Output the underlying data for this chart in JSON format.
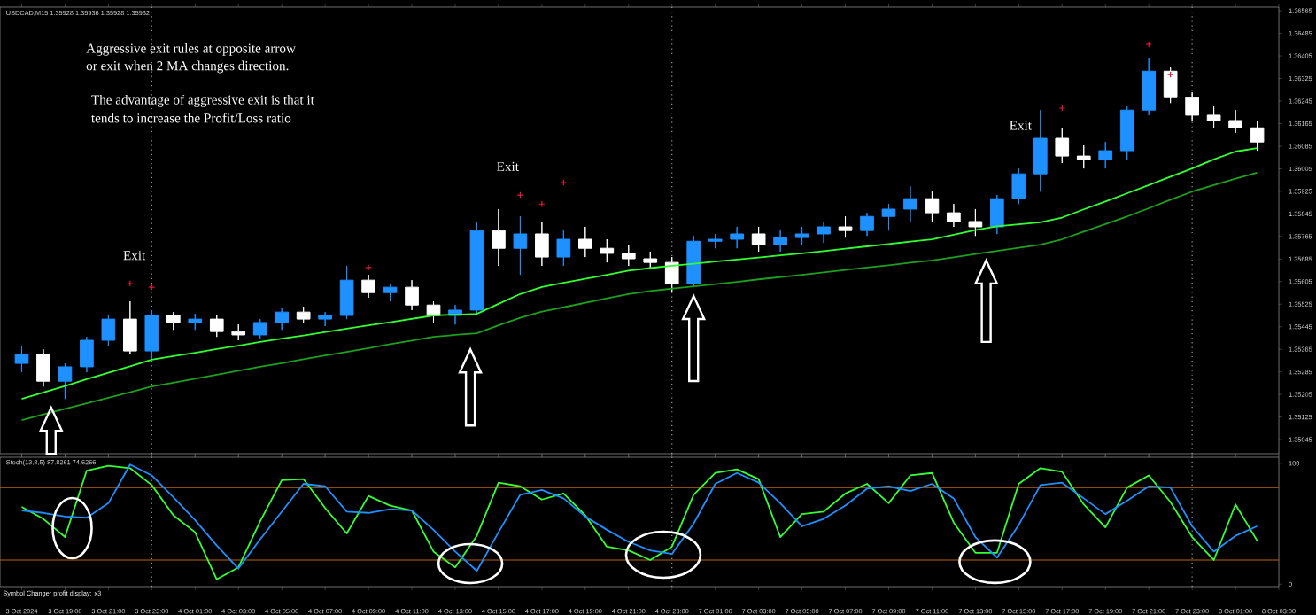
{
  "chart_data": [
    {
      "type": "candlestick",
      "title": "USDCAD,M15 1.35928 1.35936 1.35928 1.35932",
      "tick_labels": "y",
      "categories": [
        "3 Oct 2024",
        null,
        "3 Oct 19:00",
        null,
        "3 Oct 21:00",
        null,
        "3 Oct 23:00",
        null,
        "4 Oct 01:00",
        null,
        "4 Oct 03:00",
        null,
        "4 Oct 05:00",
        null,
        "4 Oct 07:00",
        null,
        "4 Oct 09:00",
        null,
        "4 Oct 11:00",
        null,
        "4 Oct 13:00",
        null,
        "4 Oct 15:00",
        null,
        "4 Oct 17:00",
        null,
        "4 Oct 19:00",
        null,
        "4 Oct 21:00",
        null,
        "4 Oct 23:00",
        null,
        "7 Oct 01:00",
        null,
        "7 Oct 03:00",
        null,
        "7 Oct 05:00",
        null,
        "7 Oct 07:00",
        null,
        "7 Oct 09:00",
        null,
        "7 Oct 11:00",
        null,
        "7 Oct 13:00",
        null,
        "7 Oct 15:00",
        null,
        "7 Oct 17:00",
        null,
        "7 Oct 19:00",
        null,
        "7 Oct 21:00",
        null,
        "7 Oct 23:00",
        null,
        "8 Oct 01:00",
        null,
        "8 Oct 03:00"
      ],
      "ohlc": [
        [
          1.35315,
          1.35378,
          1.35284,
          1.35347
        ],
        [
          1.35347,
          1.35365,
          1.35233,
          1.35252
        ],
        [
          1.35252,
          1.35315,
          1.35189,
          1.35303
        ],
        [
          1.35303,
          1.35409,
          1.35284,
          1.35397
        ],
        [
          1.35397,
          1.35485,
          1.35378,
          1.35472
        ],
        [
          1.35472,
          1.35535,
          1.35347,
          1.35359
        ],
        [
          1.35359,
          1.35504,
          1.35328,
          1.35485
        ],
        [
          1.35485,
          1.35497,
          1.35434,
          1.3546
        ],
        [
          1.3546,
          1.35491,
          1.35434,
          1.35472
        ],
        [
          1.35472,
          1.35485,
          1.35409,
          1.35428
        ],
        [
          1.35428,
          1.35453,
          1.35397,
          1.35416
        ],
        [
          1.35416,
          1.35472,
          1.35403,
          1.3546
        ],
        [
          1.3546,
          1.3551,
          1.35434,
          1.35497
        ],
        [
          1.35497,
          1.35516,
          1.3546,
          1.35472
        ],
        [
          1.35472,
          1.35497,
          1.35447,
          1.35485
        ],
        [
          1.35485,
          1.35661,
          1.35472,
          1.3561
        ],
        [
          1.3561,
          1.35629,
          1.35548,
          1.35566
        ],
        [
          1.35566,
          1.35598,
          1.35535,
          1.35585
        ],
        [
          1.35585,
          1.3561,
          1.35504,
          1.35522
        ],
        [
          1.35522,
          1.35535,
          1.3546,
          1.35485
        ],
        [
          1.35485,
          1.35522,
          1.35453,
          1.35504
        ],
        [
          1.35504,
          1.35818,
          1.35485,
          1.35786
        ],
        [
          1.35786,
          1.35862,
          1.35661,
          1.35723
        ],
        [
          1.35723,
          1.35836,
          1.35629,
          1.35774
        ],
        [
          1.35774,
          1.35818,
          1.35661,
          1.35692
        ],
        [
          1.35692,
          1.35786,
          1.35661,
          1.35755
        ],
        [
          1.35755,
          1.35799,
          1.35692,
          1.35723
        ],
        [
          1.35723,
          1.35755,
          1.35673,
          1.35705
        ],
        [
          1.35705,
          1.35736,
          1.35661,
          1.35686
        ],
        [
          1.35686,
          1.35711,
          1.35648,
          1.35673
        ],
        [
          1.35673,
          1.35692,
          1.35566,
          1.35598
        ],
        [
          1.35598,
          1.35767,
          1.35585,
          1.35748
        ],
        [
          1.35748,
          1.35774,
          1.35723,
          1.35755
        ],
        [
          1.35755,
          1.35799,
          1.35723,
          1.35774
        ],
        [
          1.35774,
          1.35799,
          1.35711,
          1.35736
        ],
        [
          1.35736,
          1.35786,
          1.35711,
          1.35761
        ],
        [
          1.35761,
          1.35799,
          1.35736,
          1.35774
        ],
        [
          1.35774,
          1.35818,
          1.35742,
          1.35799
        ],
        [
          1.35799,
          1.35836,
          1.35761,
          1.35786
        ],
        [
          1.35786,
          1.35849,
          1.35767,
          1.35836
        ],
        [
          1.35836,
          1.3588,
          1.35786,
          1.35862
        ],
        [
          1.35862,
          1.35943,
          1.35818,
          1.35899
        ],
        [
          1.35899,
          1.35924,
          1.35818,
          1.35849
        ],
        [
          1.35849,
          1.3588,
          1.35799,
          1.35818
        ],
        [
          1.35818,
          1.35862,
          1.35767,
          1.35799
        ],
        [
          1.35799,
          1.35912,
          1.35774,
          1.35899
        ],
        [
          1.35899,
          1.36006,
          1.3588,
          1.35987
        ],
        [
          1.35987,
          1.36213,
          1.35924,
          1.36113
        ],
        [
          1.36113,
          1.3615,
          1.36025,
          1.3605
        ],
        [
          1.3605,
          1.36088,
          1.36006,
          1.36037
        ],
        [
          1.36037,
          1.361,
          1.36006,
          1.36069
        ],
        [
          1.36069,
          1.36226,
          1.36037,
          1.36213
        ],
        [
          1.36213,
          1.36396,
          1.36195,
          1.36351
        ],
        [
          1.36351,
          1.36364,
          1.36238,
          1.36257
        ],
        [
          1.36257,
          1.36276,
          1.36176,
          1.36195
        ],
        [
          1.36195,
          1.36226,
          1.3615,
          1.36176
        ],
        [
          1.36176,
          1.36213,
          1.36132,
          1.3615
        ],
        [
          1.3615,
          1.36176,
          1.36069,
          1.361
        ],
        null
      ],
      "colors": [
        "#1e90ff",
        "#ffffff",
        "#1e90ff",
        "#1e90ff",
        "#1e90ff",
        "#ffffff",
        "#1e90ff",
        "#ffffff",
        "#1e90ff",
        "#ffffff",
        "#ffffff",
        "#1e90ff",
        "#1e90ff",
        "#ffffff",
        "#1e90ff",
        "#1e90ff",
        "#ffffff",
        "#1e90ff",
        "#ffffff",
        "#ffffff",
        "#1e90ff",
        "#1e90ff",
        "#ffffff",
        "#1e90ff",
        "#ffffff",
        "#1e90ff",
        "#ffffff",
        "#ffffff",
        "#ffffff",
        "#ffffff",
        "#ffffff",
        "#1e90ff",
        "#1e90ff",
        "#1e90ff",
        "#ffffff",
        "#1e90ff",
        "#1e90ff",
        "#1e90ff",
        "#ffffff",
        "#1e90ff",
        "#1e90ff",
        "#1e90ff",
        "#ffffff",
        "#ffffff",
        "#ffffff",
        "#1e90ff",
        "#1e90ff",
        "#1e90ff",
        "#ffffff",
        "#ffffff",
        "#1e90ff",
        "#1e90ff",
        "#1e90ff",
        "#ffffff",
        "#ffffff",
        "#ffffff",
        "#ffffff",
        "#ffffff",
        null
      ],
      "ylim": [
        1.34995,
        1.36578
      ],
      "yticks": [
        1.35045,
        1.35125,
        1.35205,
        1.35285,
        1.35365,
        1.35445,
        1.35525,
        1.35605,
        1.35685,
        1.35765,
        1.35845,
        1.35925,
        1.36005,
        1.36085,
        1.36165,
        1.36245,
        1.36325,
        1.36405,
        1.36485,
        1.36565
      ],
      "series": [
        {
          "type": "line",
          "color": "#33ff33",
          "values": [
            1.35189,
            1.35212,
            1.35235,
            1.35259,
            1.35282,
            1.35305,
            1.35328,
            1.35341,
            1.35353,
            1.35366,
            1.35378,
            1.35391,
            1.35403,
            1.35414,
            1.35426,
            1.35438,
            1.3545,
            1.35461,
            1.35473,
            1.35485,
            1.35488,
            1.35491,
            1.35526,
            1.35561,
            1.35586,
            1.35601,
            1.35615,
            1.35629,
            1.35644,
            1.35653,
            1.35661,
            1.35668,
            1.35676,
            1.35683,
            1.3569,
            1.35698,
            1.35705,
            1.35713,
            1.35722,
            1.3573,
            1.35738,
            1.35747,
            1.35755,
            1.35771,
            1.35788,
            1.35801,
            1.35808,
            1.35815,
            1.35832,
            1.35861,
            1.35889,
            1.35918,
            1.35947,
            1.35977,
            1.36006,
            1.36038,
            1.36066,
            1.36078,
            null
          ]
        },
        {
          "type": "line",
          "color": "#1f9f1f",
          "values": [
            1.35114,
            1.35134,
            1.35154,
            1.35174,
            1.35193,
            1.35213,
            1.35233,
            1.35247,
            1.35261,
            1.35275,
            1.35289,
            1.35303,
            1.35316,
            1.3533,
            1.35343,
            1.35356,
            1.35369,
            1.35383,
            1.35396,
            1.35409,
            1.35416,
            1.35422,
            1.3545,
            1.35477,
            1.35499,
            1.35514,
            1.3553,
            1.35546,
            1.35561,
            1.35572,
            1.3558,
            1.35588,
            1.35596,
            1.35604,
            1.35613,
            1.35621,
            1.35629,
            1.35638,
            1.35646,
            1.35655,
            1.35663,
            1.35672,
            1.3568,
            1.35691,
            1.35703,
            1.35714,
            1.35725,
            1.35736,
            1.35755,
            1.35782,
            1.35809,
            1.35836,
            1.35865,
            1.35895,
            1.35924,
            1.35947,
            1.3597,
            1.35991,
            null
          ]
        },
        {
          "type": "scatter",
          "marker": "cross",
          "color": "#e8173c",
          "values": [
            null,
            null,
            null,
            null,
            null,
            1.35598,
            1.35585,
            null,
            null,
            null,
            null,
            null,
            null,
            null,
            null,
            null,
            1.35655,
            null,
            null,
            null,
            null,
            null,
            null,
            1.35912,
            1.3588,
            1.35956,
            null,
            null,
            null,
            null,
            null,
            null,
            null,
            null,
            null,
            null,
            null,
            null,
            null,
            null,
            null,
            null,
            null,
            null,
            null,
            null,
            null,
            null,
            1.3622,
            null,
            null,
            null,
            1.36446,
            1.36339,
            null,
            null,
            null,
            null,
            null
          ]
        }
      ],
      "ref_lines": [
        {
          "axis": "x",
          "value": "3 Oct 23:00",
          "color": "#9a9a9a",
          "line_style": "dotted"
        },
        {
          "axis": "x",
          "value": "4 Oct 23:00",
          "color": "#9a9a9a",
          "line_style": "dotted"
        },
        {
          "axis": "x",
          "value": "7 Oct 23:00",
          "color": "#9a9a9a",
          "line_style": "dotted"
        }
      ],
      "annotations": [
        "Aggressive exit rules at opposite arrow",
        "or exit when 2 MA changes direction.",
        "The advantage of aggressive exit is that it",
        "tends to increase the Profit/Loss ratio",
        "Exit",
        "Exit",
        "Exit"
      ]
    },
    {
      "type": "line",
      "title": "Stoch(13,8,5) 87.8261 74.6266",
      "ylim": [
        -2,
        105
      ],
      "yticks": [
        0,
        100
      ],
      "categories": [
        "3 Oct 2024",
        null,
        "3 Oct 19:00",
        null,
        "3 Oct 21:00",
        null,
        "3 Oct 23:00",
        null,
        "4 Oct 01:00",
        null,
        "4 Oct 03:00",
        null,
        "4 Oct 05:00",
        null,
        "4 Oct 07:00",
        null,
        "4 Oct 09:00",
        null,
        "4 Oct 11:00",
        null,
        "4 Oct 13:00",
        null,
        "4 Oct 15:00",
        null,
        "4 Oct 17:00",
        null,
        "4 Oct 19:00",
        null,
        "4 Oct 21:00",
        null,
        "4 Oct 23:00",
        null,
        "7 Oct 01:00",
        null,
        "7 Oct 03:00",
        null,
        "7 Oct 05:00",
        null,
        "7 Oct 07:00",
        null,
        "7 Oct 09:00",
        null,
        "7 Oct 11:00",
        null,
        "7 Oct 13:00",
        null,
        "7 Oct 15:00",
        null,
        "7 Oct 17:00",
        null,
        "7 Oct 19:00",
        null,
        "7 Oct 21:00",
        null,
        "7 Oct 23:00",
        null,
        "8 Oct 01:00",
        null,
        "8 Oct 03:00"
      ],
      "series": [
        {
          "color": "#33ff33",
          "values": [
            64,
            54,
            39,
            94,
            98,
            96,
            82,
            57,
            43,
            4,
            14,
            52,
            86,
            87,
            63,
            42,
            73,
            65,
            61,
            27,
            14,
            40,
            84,
            81,
            70,
            75,
            57,
            31,
            28,
            20,
            31,
            74,
            92,
            95,
            87,
            39,
            58,
            60,
            75,
            83,
            67,
            90,
            92,
            51,
            26,
            26,
            83,
            96,
            93,
            66,
            47,
            80,
            90,
            68,
            39,
            20,
            66,
            36,
            null
          ]
        },
        {
          "color": "#1e90ff",
          "values": [
            61,
            59,
            56,
            55,
            67,
            99,
            90,
            72,
            53,
            32,
            13,
            37,
            60,
            83,
            81,
            60,
            59,
            62,
            61,
            45,
            27,
            11,
            43,
            74,
            78,
            71,
            56,
            45,
            35,
            28,
            25,
            50,
            83,
            92,
            84,
            67,
            48,
            54,
            65,
            79,
            81,
            77,
            83,
            71,
            39,
            22,
            49,
            82,
            84,
            71,
            58,
            69,
            81,
            80,
            48,
            27,
            40,
            48,
            null
          ]
        }
      ],
      "ref_lines": [
        {
          "axis": "y",
          "value": 80,
          "color": "#b8660b",
          "line_style": "solid"
        },
        {
          "axis": "y",
          "value": 20,
          "color": "#b8660b",
          "line_style": "solid"
        },
        {
          "axis": "x",
          "value": "3 Oct 23:00",
          "color": "#9a9a9a",
          "line_style": "dotted"
        },
        {
          "axis": "x",
          "value": "4 Oct 23:00",
          "color": "#9a9a9a",
          "line_style": "dotted"
        },
        {
          "axis": "x",
          "value": "7 Oct 23:00",
          "color": "#9a9a9a",
          "line_style": "dotted"
        }
      ],
      "annotations": [
        "Symbol Changer profit display: x3"
      ]
    }
  ]
}
